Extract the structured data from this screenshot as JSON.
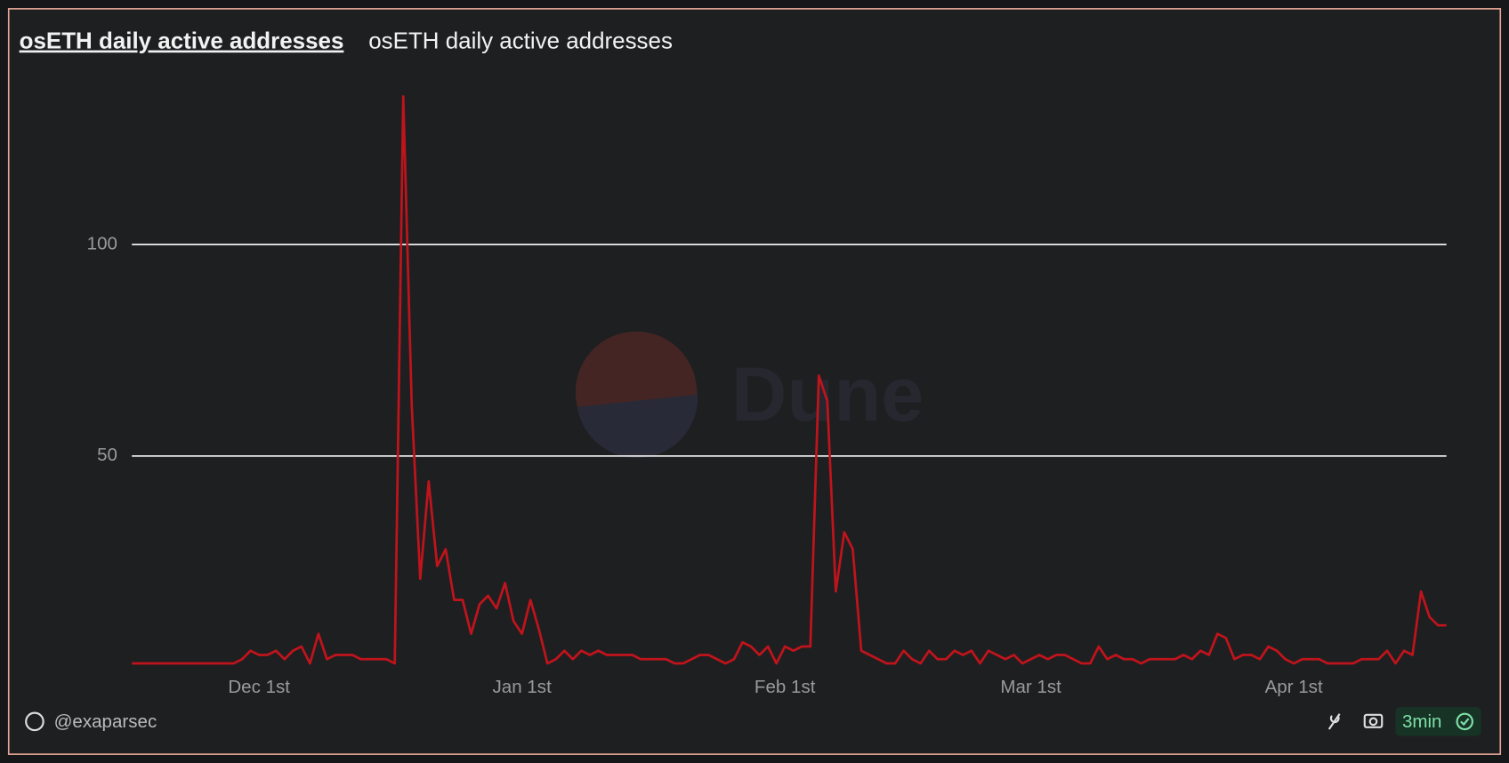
{
  "chart_data": {
    "type": "line",
    "title": "osETH daily active addresses",
    "subtitle": "osETH daily active addresses",
    "watermark": "Dune",
    "x": [
      "Nov 16th",
      "Nov 17th",
      "Nov 18th",
      "Nov 19th",
      "Nov 20th",
      "Nov 21st",
      "Nov 22nd",
      "Nov 23rd",
      "Nov 24th",
      "Nov 25th",
      "Nov 26th",
      "Nov 27th",
      "Nov 28th",
      "Nov 29th",
      "Nov 30th",
      "Dec 1st",
      "Dec 2nd",
      "Dec 3rd",
      "Dec 4th",
      "Dec 5th",
      "Dec 6th",
      "Dec 7th",
      "Dec 8th",
      "Dec 9th",
      "Dec 10th",
      "Dec 11th",
      "Dec 12th",
      "Dec 13th",
      "Dec 14th",
      "Dec 15th",
      "Dec 16th",
      "Dec 17th",
      "Dec 18th",
      "Dec 19th",
      "Dec 20th",
      "Dec 21st",
      "Dec 22nd",
      "Dec 23rd",
      "Dec 24th",
      "Dec 25th",
      "Dec 26th",
      "Dec 27th",
      "Dec 28th",
      "Dec 29th",
      "Dec 30th",
      "Dec 31st",
      "Jan 1st",
      "Jan 2nd",
      "Jan 3rd",
      "Jan 4th",
      "Jan 5th",
      "Jan 6th",
      "Jan 7th",
      "Jan 8th",
      "Jan 9th",
      "Jan 10th",
      "Jan 11th",
      "Jan 12th",
      "Jan 13th",
      "Jan 14th",
      "Jan 15th",
      "Jan 16th",
      "Jan 17th",
      "Jan 18th",
      "Jan 19th",
      "Jan 20th",
      "Jan 21st",
      "Jan 22nd",
      "Jan 23rd",
      "Jan 24th",
      "Jan 25th",
      "Jan 26th",
      "Jan 27th",
      "Jan 28th",
      "Jan 29th",
      "Jan 30th",
      "Jan 31st",
      "Feb 1st",
      "Feb 2nd",
      "Feb 3rd",
      "Feb 4th",
      "Feb 5th",
      "Feb 6th",
      "Feb 7th",
      "Feb 8th",
      "Feb 9th",
      "Feb 10th",
      "Feb 11th",
      "Feb 12th",
      "Feb 13th",
      "Feb 14th",
      "Feb 15th",
      "Feb 16th",
      "Feb 17th",
      "Feb 18th",
      "Feb 19th",
      "Feb 20th",
      "Feb 21st",
      "Feb 22nd",
      "Feb 23rd",
      "Feb 24th",
      "Feb 25th",
      "Feb 26th",
      "Feb 27th",
      "Feb 28th",
      "Feb 29th",
      "Mar 1st",
      "Mar 2nd",
      "Mar 3rd",
      "Mar 4th",
      "Mar 5th",
      "Mar 6th",
      "Mar 7th",
      "Mar 8th",
      "Mar 9th",
      "Mar 10th",
      "Mar 11th",
      "Mar 12th",
      "Mar 13th",
      "Mar 14th",
      "Mar 15th",
      "Mar 16th",
      "Mar 17th",
      "Mar 18th",
      "Mar 19th",
      "Mar 20th",
      "Mar 21st",
      "Mar 22nd",
      "Mar 23rd",
      "Mar 24th",
      "Mar 25th",
      "Mar 26th",
      "Mar 27th",
      "Mar 28th",
      "Mar 29th",
      "Mar 30th",
      "Mar 31st",
      "Apr 1st",
      "Apr 2nd",
      "Apr 3rd",
      "Apr 4th",
      "Apr 5th",
      "Apr 6th",
      "Apr 7th",
      "Apr 8th",
      "Apr 9th",
      "Apr 10th",
      "Apr 11th",
      "Apr 12th",
      "Apr 13th",
      "Apr 14th",
      "Apr 15th",
      "Apr 16th",
      "Apr 17th",
      "Apr 18th",
      "Apr 19th"
    ],
    "values": [
      1,
      1,
      1,
      1,
      1,
      1,
      1,
      1,
      1,
      1,
      1,
      1,
      1,
      2,
      4,
      3,
      3,
      4,
      2,
      4,
      5,
      1,
      8,
      2,
      3,
      3,
      3,
      2,
      2,
      2,
      2,
      1,
      135,
      62,
      21,
      44,
      24,
      28,
      16,
      16,
      8,
      15,
      17,
      14,
      20,
      11,
      8,
      16,
      9,
      1,
      2,
      4,
      2,
      4,
      3,
      4,
      3,
      3,
      3,
      3,
      2,
      2,
      2,
      2,
      1,
      1,
      2,
      3,
      3,
      2,
      1,
      2,
      6,
      5,
      3,
      5,
      1,
      5,
      4,
      5,
      5,
      69,
      63,
      18,
      32,
      28,
      4,
      3,
      2,
      1,
      1,
      4,
      2,
      1,
      4,
      2,
      2,
      4,
      3,
      4,
      1,
      4,
      3,
      2,
      3,
      1,
      2,
      3,
      2,
      3,
      3,
      2,
      1,
      1,
      5,
      2,
      3,
      2,
      2,
      1,
      2,
      2,
      2,
      2,
      3,
      2,
      4,
      3,
      8,
      7,
      2,
      3,
      3,
      2,
      5,
      4,
      2,
      1,
      2,
      2,
      2,
      1,
      1,
      1,
      1,
      2,
      2,
      2,
      4,
      1,
      4,
      3,
      18,
      12,
      10,
      10
    ],
    "color": "#c0141c",
    "ylim": [
      0,
      140
    ],
    "yticks": [
      50,
      100
    ],
    "xticks": [
      "Dec 1st",
      "Jan 1st",
      "Feb 1st",
      "Mar 1st",
      "Apr 1st"
    ],
    "grid": true
  },
  "footer": {
    "author": "@exaparsec",
    "refresh": "3min"
  }
}
